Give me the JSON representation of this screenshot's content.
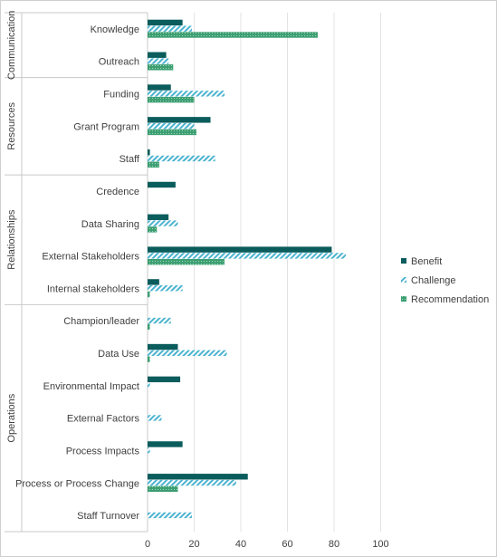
{
  "chart_data": {
    "type": "bar",
    "orientation": "horizontal",
    "groups": [
      {
        "name": "Communication",
        "categories": [
          "Knowledge",
          "Outreach"
        ]
      },
      {
        "name": "Resources",
        "categories": [
          "Funding",
          "Grant Program",
          "Staff"
        ]
      },
      {
        "name": "Relationships",
        "categories": [
          "Credence",
          "Data Sharing",
          "External Stakeholders",
          "Internal stakeholders"
        ]
      },
      {
        "name": "Operations",
        "categories": [
          "Champion/leader",
          "Data Use",
          "Environmental Impact",
          "External Factors",
          "Process Impacts",
          "Process or Process Change",
          "Staff Turnover"
        ]
      }
    ],
    "categories": [
      "Knowledge",
      "Outreach",
      "Funding",
      "Grant Program",
      "Staff",
      "Credence",
      "Data Sharing",
      "External Stakeholders",
      "Internal stakeholders",
      "Champion/leader",
      "Data Use",
      "Environmental Impact",
      "External Factors",
      "Process Impacts",
      "Process or Process Change",
      "Staff Turnover"
    ],
    "series": [
      {
        "name": "Benefit",
        "color": "#0b5c5c",
        "pattern": "solid",
        "values": [
          15,
          8,
          10,
          27,
          1,
          12,
          9,
          79,
          5,
          0,
          13,
          14,
          0,
          15,
          43,
          0
        ]
      },
      {
        "name": "Challenge",
        "color": "#4bb3cf",
        "pattern": "diagonal-stripes",
        "values": [
          19,
          9,
          33,
          20,
          29,
          0,
          13,
          85,
          15,
          10,
          34,
          1,
          6,
          1,
          38,
          19
        ]
      },
      {
        "name": "Recommendation",
        "color": "#3d9f72",
        "pattern": "dotted-grid",
        "values": [
          73,
          11,
          20,
          21,
          5,
          0,
          4,
          33,
          1,
          1,
          1,
          0,
          0,
          0,
          13,
          0
        ]
      }
    ],
    "xlim": [
      0,
      120
    ],
    "xticks": [
      "0",
      "20",
      "40",
      "60",
      "80",
      "100"
    ],
    "xtick_values": [
      0,
      20,
      40,
      60,
      80,
      100
    ],
    "grid": true,
    "legend_position": "right",
    "title": "",
    "xlabel": "",
    "ylabel": ""
  }
}
